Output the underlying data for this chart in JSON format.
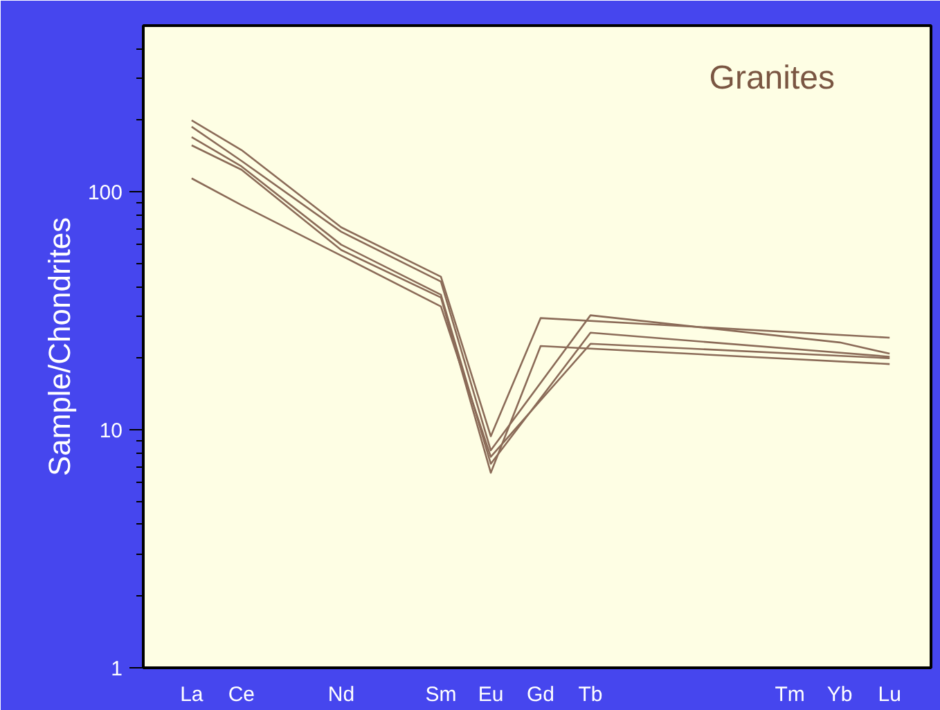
{
  "chart_data": {
    "type": "line",
    "title": "Granites",
    "ylabel": "Sample/Chondrites",
    "categories": [
      "La",
      "Ce",
      null,
      "Nd",
      null,
      "Sm",
      "Eu",
      "Gd",
      "Tb",
      null,
      null,
      null,
      "Tm",
      "Yb",
      "Lu"
    ],
    "series": [
      {
        "color": "#8b6b58",
        "values": [
          200,
          150,
          null,
          71,
          null,
          44,
          9.4,
          29.5,
          null,
          null,
          null,
          null,
          null,
          null,
          24.4
        ]
      },
      {
        "color": "#8b6b58",
        "values": [
          188,
          135,
          null,
          68,
          null,
          42,
          8.2,
          null,
          30.3,
          null,
          null,
          null,
          null,
          23.3,
          20.9
        ]
      },
      {
        "color": "#8b6b58",
        "values": [
          170,
          128,
          null,
          60,
          null,
          37,
          7.2,
          null,
          25.6,
          null,
          null,
          null,
          null,
          null,
          20.3
        ]
      },
      {
        "color": "#8b6b58",
        "values": [
          157,
          124,
          null,
          57,
          null,
          36,
          6.6,
          22.5,
          null,
          null,
          null,
          null,
          null,
          null,
          18.9
        ]
      },
      {
        "color": "#8b6b58",
        "values": [
          114,
          88,
          null,
          54,
          null,
          33,
          7.7,
          null,
          23.0,
          null,
          null,
          null,
          null,
          null,
          20.0
        ]
      }
    ],
    "log": "y",
    "ylim": [
      1,
      500
    ],
    "yticks": [
      1,
      10,
      100
    ],
    "grid": false,
    "marker": "none",
    "line_style": "solid"
  }
}
